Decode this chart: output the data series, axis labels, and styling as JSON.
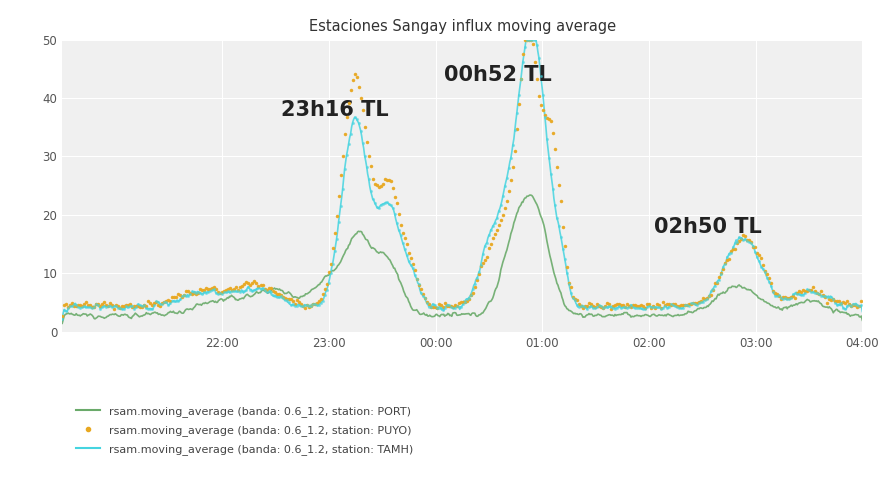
{
  "title": "Estaciones Sangay influx moving average",
  "title_fontsize": 10.5,
  "background_color": "#ffffff",
  "plot_bg_color": "#f0f0f0",
  "grid_color": "#ffffff",
  "ylim": [
    0,
    50
  ],
  "yticks": [
    0,
    10,
    20,
    30,
    40,
    50
  ],
  "xlim_hours": [
    -0.5,
    7.0
  ],
  "xtick_positions_h": [
    1,
    2,
    3,
    4,
    5,
    6,
    7
  ],
  "xtick_labels": [
    "22:00",
    "23:00",
    "00:00",
    "01:00",
    "02:00",
    "03:00",
    "04:00"
  ],
  "annotations": [
    {
      "text": "23h16 TL",
      "x_h": 1.55,
      "y": 38,
      "fontsize": 15,
      "fontweight": "bold"
    },
    {
      "text": "00h52 TL",
      "x_h": 3.08,
      "y": 44,
      "fontsize": 15,
      "fontweight": "bold"
    },
    {
      "text": "02h50 TL",
      "x_h": 5.05,
      "y": 18,
      "fontsize": 15,
      "fontweight": "bold"
    }
  ],
  "legend_labels": [
    "rsam.moving_average (banda: 0.6_1.2, station: PORT)",
    "rsam.moving_average (banda: 0.6_1.2, station: PUYO)",
    "rsam.moving_average (banda: 0.6_1.2, station: TAMH)"
  ],
  "line_colors": [
    "#6aaa6a",
    "#e8a820",
    "#45d4e0"
  ],
  "port_style": "line",
  "puyo_style": "dots",
  "tamh_style": "line"
}
